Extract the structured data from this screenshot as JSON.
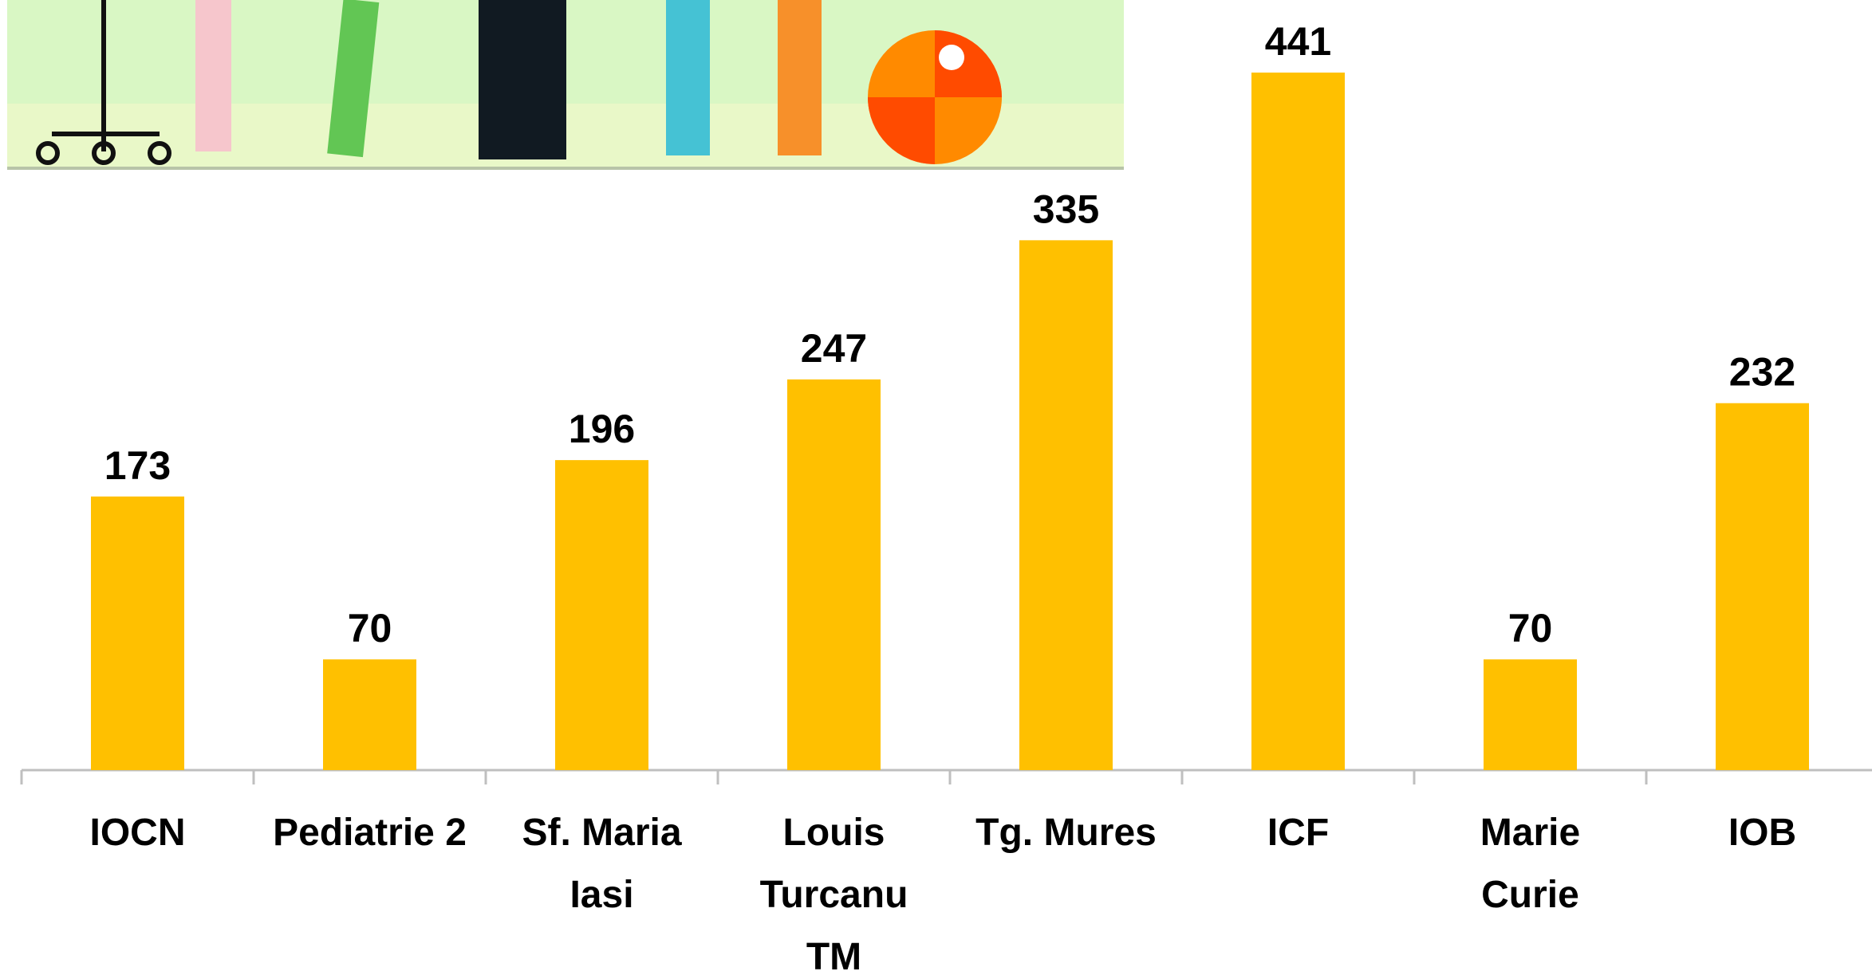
{
  "chart_data": {
    "type": "bar",
    "categories": [
      "IOCN",
      "Pediatrie 2",
      "Sf. Maria\nIasi",
      "Louis\nTurcanu\nTM",
      "Tg. Mures",
      "ICF",
      "Marie\nCurie",
      "IOB"
    ],
    "values": [
      173,
      70,
      196,
      247,
      335,
      441,
      70,
      232
    ],
    "color": "#ffc000"
  }
}
